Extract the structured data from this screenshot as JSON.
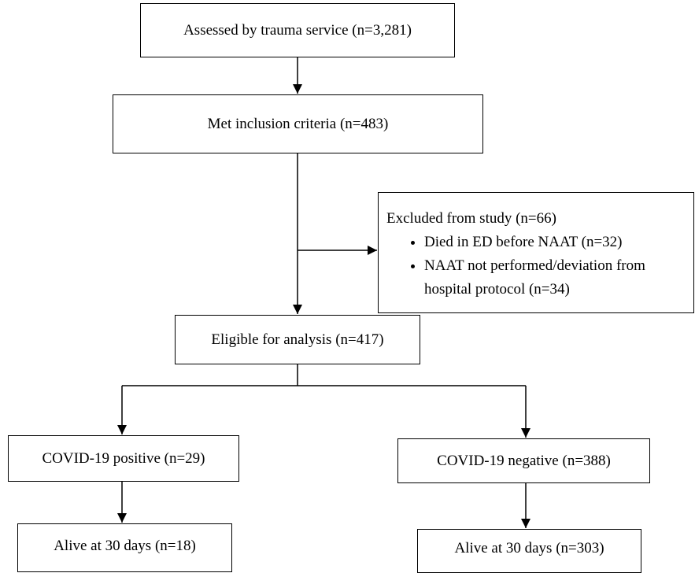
{
  "nodes": [
    {
      "label": "Assessed by trauma service (n=3,281)"
    },
    {
      "label": "Met inclusion criteria (n=483)"
    },
    {
      "label": "Eligible for analysis (n=417)"
    },
    {
      "label": "COVID-19 positive (n=29)"
    },
    {
      "label": "COVID-19 negative (n=388)"
    },
    {
      "label": "Alive at 30 days (n=18)"
    },
    {
      "label": "Alive at 30 days (n=303)"
    }
  ],
  "exclusion": {
    "label": "Excluded from study (n=66)",
    "reasons": [
      "Died in ED before NAAT (n=32)",
      "NAAT not performed/deviation from hospital protocol (n=34)"
    ]
  }
}
